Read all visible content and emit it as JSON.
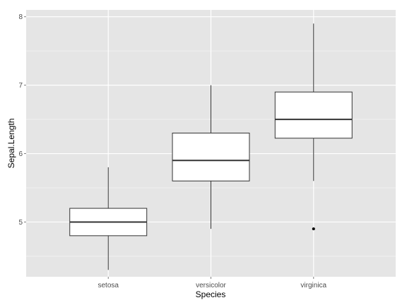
{
  "chart_data": {
    "type": "boxplot",
    "xlabel": "Species",
    "ylabel": "Sepal.Length",
    "categories": [
      "setosa",
      "versicolor",
      "virginica"
    ],
    "ylim": [
      4.2,
      8.1
    ],
    "yticks": [
      5,
      6,
      7,
      8
    ],
    "grid": true,
    "legend": "none",
    "colors": {
      "panel_background": "#e5e5e5",
      "grid_major": "#ffffff",
      "grid_minor": "#f2f2f2",
      "box_fill": "#ffffff",
      "box_stroke": "#333333"
    },
    "boxes": [
      {
        "category": "setosa",
        "min": 4.3,
        "q1": 4.8,
        "median": 5.0,
        "q3": 5.2,
        "max": 5.8,
        "outliers": []
      },
      {
        "category": "versicolor",
        "min": 4.9,
        "q1": 5.6,
        "median": 5.9,
        "q3": 6.3,
        "max": 7.0,
        "outliers": []
      },
      {
        "category": "virginica",
        "min": 5.6,
        "q1": 6.225,
        "median": 6.5,
        "q3": 6.9,
        "max": 7.9,
        "outliers": [
          4.9
        ]
      }
    ]
  }
}
